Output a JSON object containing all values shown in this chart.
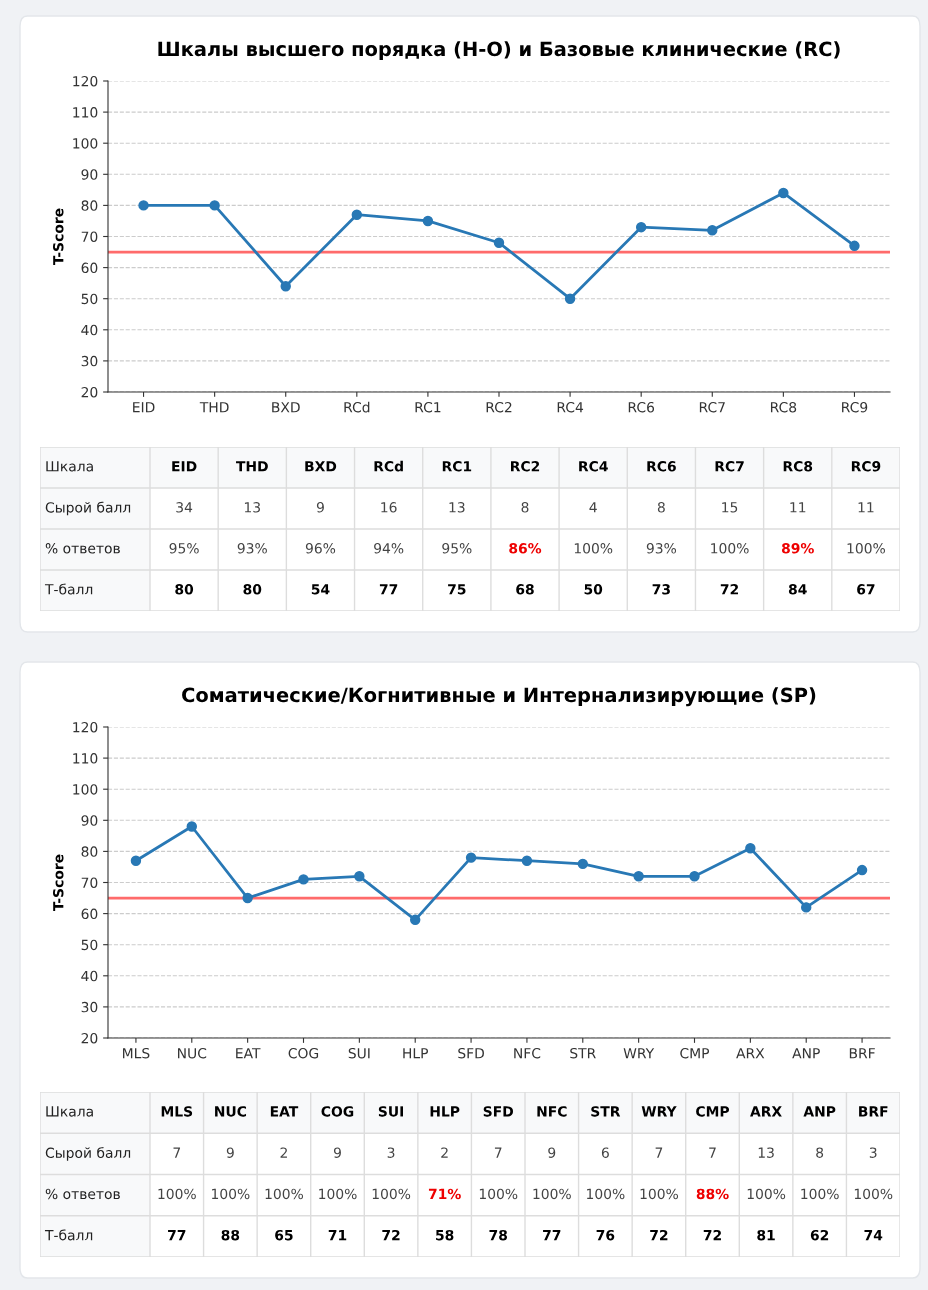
{
  "chart_data": [
    {
      "type": "line",
      "title": "Шкалы высшего порядка (H-O) и Базовые клинические (RC)",
      "ylabel": "T-Score",
      "categories": [
        "EID",
        "THD",
        "BXD",
        "RCd",
        "RC1",
        "RC2",
        "RC4",
        "RC6",
        "RC7",
        "RC8",
        "RC9"
      ],
      "series": [
        {
          "color": "#2878b5",
          "values": [
            80,
            80,
            54,
            77,
            75,
            68,
            50,
            73,
            72,
            84,
            67
          ]
        }
      ],
      "ylim": [
        20,
        120
      ],
      "yticks": [
        20,
        30,
        40,
        50,
        60,
        70,
        80,
        90,
        100,
        110,
        120
      ],
      "grid": "y",
      "marker": "circle",
      "line_style": "solid",
      "ref_lines": [
        {
          "axis": "y",
          "value": 65,
          "color": "#ff6b6b",
          "line_style": "solid"
        }
      ],
      "annotations": [
        "Шкала",
        "Сырой балл",
        "% ответов",
        "Т-балл",
        "34",
        "13",
        "9",
        "16",
        "13",
        "8",
        "4",
        "8",
        "15",
        "11",
        "11",
        "95%",
        "93%",
        "96%",
        "94%",
        "95%",
        "86%",
        "100%",
        "93%",
        "100%",
        "89%",
        "100%",
        "80",
        "80",
        "54",
        "77",
        "75",
        "68",
        "50",
        "73",
        "72",
        "84",
        "67"
      ]
    },
    {
      "type": "line",
      "title": "Соматические/Когнитивные и Интернализирующие (SP)",
      "ylabel": "T-Score",
      "categories": [
        "MLS",
        "NUC",
        "EAT",
        "COG",
        "SUI",
        "HLP",
        "SFD",
        "NFC",
        "STR",
        "WRY",
        "CMP",
        "ARX",
        "ANP",
        "BRF"
      ],
      "series": [
        {
          "color": "#2878b5",
          "values": [
            77,
            88,
            65,
            71,
            72,
            58,
            78,
            77,
            76,
            72,
            72,
            81,
            62,
            74
          ]
        }
      ],
      "ylim": [
        20,
        120
      ],
      "yticks": [
        20,
        30,
        40,
        50,
        60,
        70,
        80,
        90,
        100,
        110,
        120
      ],
      "grid": "y",
      "marker": "circle",
      "line_style": "solid",
      "ref_lines": [
        {
          "axis": "y",
          "value": 65,
          "color": "#ff6b6b",
          "line_style": "solid"
        }
      ],
      "annotations": [
        "Шкала",
        "Сырой балл",
        "% ответов",
        "Т-балл",
        "7",
        "9",
        "2",
        "9",
        "3",
        "2",
        "7",
        "9",
        "6",
        "7",
        "7",
        "13",
        "8",
        "3",
        "100%",
        "100%",
        "100%",
        "100%",
        "100%",
        "71%",
        "100%",
        "100%",
        "100%",
        "100%",
        "88%",
        "100%",
        "100%",
        "100%",
        "77",
        "88",
        "65",
        "71",
        "72",
        "58",
        "78",
        "77",
        "76",
        "72",
        "72",
        "81",
        "62",
        "74"
      ]
    }
  ]
}
